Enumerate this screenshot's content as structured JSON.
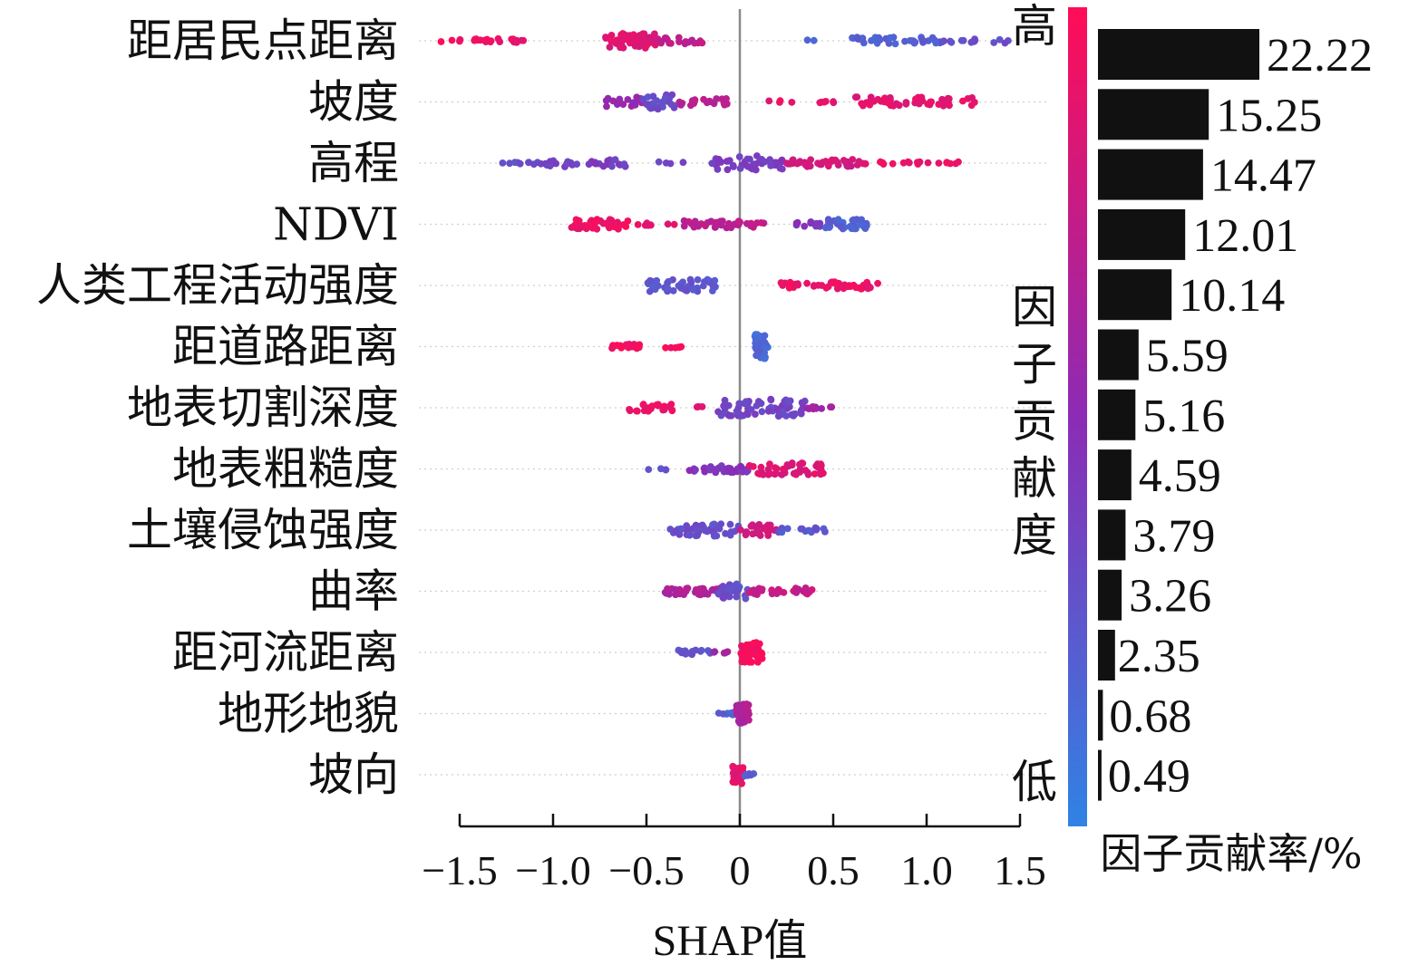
{
  "chart_data": [
    {
      "type": "scatter",
      "subtype": "shap-beeswarm",
      "xlabel": "SHAP值",
      "xlim": [
        -1.5,
        1.5
      ],
      "x_ticks": [
        -1.5,
        -1.0,
        -0.5,
        0,
        0.5,
        1.0,
        1.5
      ],
      "x_tick_labels": [
        "−1.5",
        "−1.0",
        "−0.5",
        "0",
        "0.5",
        "1.0",
        "1.5"
      ],
      "vertical_zero_line": true,
      "colors": {
        "high": "#ff0d57",
        "mid": "#8c2bb5",
        "low": "#2f83e4"
      },
      "features": [
        {
          "name": "距居民点距离",
          "clusters": [
            {
              "from": -1.62,
              "to": -1.5,
              "n": 3,
              "color": 0.97,
              "spread": 1
            },
            {
              "from": -1.5,
              "to": -1.15,
              "n": 22,
              "color": 0.92,
              "spread": 2
            },
            {
              "from": -0.72,
              "to": -0.45,
              "n": 55,
              "color": 0.85,
              "spread": 6
            },
            {
              "from": -0.45,
              "to": -0.2,
              "n": 18,
              "color": 0.72,
              "spread": 3
            },
            {
              "from": 0.35,
              "to": 0.4,
              "n": 2,
              "color": 0.15,
              "spread": 1
            },
            {
              "from": 0.6,
              "to": 1.08,
              "n": 38,
              "color": 0.2,
              "spread": 3
            },
            {
              "from": 1.08,
              "to": 1.45,
              "n": 14,
              "color": 0.3,
              "spread": 2
            }
          ]
        },
        {
          "name": "坡度",
          "clusters": [
            {
              "from": -0.72,
              "to": -0.52,
              "n": 18,
              "color": 0.55,
              "spread": 4
            },
            {
              "from": -0.52,
              "to": -0.35,
              "n": 30,
              "color": 0.3,
              "spread": 6
            },
            {
              "from": -0.35,
              "to": -0.05,
              "n": 20,
              "color": 0.68,
              "spread": 3
            },
            {
              "from": 0.12,
              "to": 0.55,
              "n": 10,
              "color": 0.9,
              "spread": 1
            },
            {
              "from": 0.62,
              "to": 1.3,
              "n": 45,
              "color": 0.88,
              "spread": 4
            }
          ]
        },
        {
          "name": "高程",
          "clusters": [
            {
              "from": -1.28,
              "to": -1.05,
              "n": 10,
              "color": 0.3,
              "spread": 1
            },
            {
              "from": -1.05,
              "to": -0.6,
              "n": 30,
              "color": 0.38,
              "spread": 3
            },
            {
              "from": -0.45,
              "to": -0.3,
              "n": 4,
              "color": 0.35,
              "spread": 1
            },
            {
              "from": -0.15,
              "to": 0.25,
              "n": 45,
              "color": 0.4,
              "spread": 6
            },
            {
              "from": 0.25,
              "to": 0.65,
              "n": 40,
              "color": 0.8,
              "spread": 3
            },
            {
              "from": 0.65,
              "to": 1.2,
              "n": 22,
              "color": 0.92,
              "spread": 1
            }
          ]
        },
        {
          "name": "NDVI",
          "clusters": [
            {
              "from": -0.92,
              "to": -0.6,
              "n": 42,
              "color": 0.92,
              "spread": 4
            },
            {
              "from": -0.55,
              "to": -0.35,
              "n": 8,
              "color": 0.88,
              "spread": 1
            },
            {
              "from": -0.3,
              "to": 0.15,
              "n": 40,
              "color": 0.7,
              "spread": 3
            },
            {
              "from": 0.28,
              "to": 0.45,
              "n": 10,
              "color": 0.45,
              "spread": 2
            },
            {
              "from": 0.45,
              "to": 0.68,
              "n": 35,
              "color": 0.2,
              "spread": 4
            }
          ]
        },
        {
          "name": "人类工程活动强度",
          "clusters": [
            {
              "from": -0.5,
              "to": -0.12,
              "n": 50,
              "color": 0.25,
              "spread": 5
            },
            {
              "from": 0.22,
              "to": 0.75,
              "n": 45,
              "color": 0.92,
              "spread": 3
            }
          ]
        },
        {
          "name": "距道路距离",
          "clusters": [
            {
              "from": -0.7,
              "to": -0.52,
              "n": 25,
              "color": 0.95,
              "spread": 2
            },
            {
              "from": -0.4,
              "to": -0.3,
              "n": 6,
              "color": 0.95,
              "spread": 1
            },
            {
              "from": 0.08,
              "to": 0.15,
              "n": 40,
              "color": 0.15,
              "spread": 10
            }
          ]
        },
        {
          "name": "地表切割深度",
          "clusters": [
            {
              "from": -0.6,
              "to": -0.35,
              "n": 25,
              "color": 0.93,
              "spread": 3
            },
            {
              "from": -0.3,
              "to": -0.2,
              "n": 3,
              "color": 0.9,
              "spread": 1
            },
            {
              "from": -0.12,
              "to": 0.35,
              "n": 70,
              "color": 0.35,
              "spread": 7
            },
            {
              "from": 0.35,
              "to": 0.5,
              "n": 10,
              "color": 0.6,
              "spread": 1
            }
          ]
        },
        {
          "name": "地表粗糙度",
          "clusters": [
            {
              "from": -0.5,
              "to": -0.38,
              "n": 4,
              "color": 0.25,
              "spread": 1
            },
            {
              "from": -0.28,
              "to": 0.05,
              "n": 40,
              "color": 0.45,
              "spread": 3
            },
            {
              "from": 0.05,
              "to": 0.45,
              "n": 45,
              "color": 0.85,
              "spread": 5
            }
          ]
        },
        {
          "name": "土壤侵蚀强度",
          "clusters": [
            {
              "from": -0.38,
              "to": 0.0,
              "n": 45,
              "color": 0.3,
              "spread": 5
            },
            {
              "from": 0.0,
              "to": 0.2,
              "n": 30,
              "color": 0.8,
              "spread": 5
            },
            {
              "from": 0.2,
              "to": 0.47,
              "n": 15,
              "color": 0.25,
              "spread": 2
            }
          ]
        },
        {
          "name": "曲率",
          "clusters": [
            {
              "from": -0.4,
              "to": -0.05,
              "n": 40,
              "color": 0.65,
              "spread": 3
            },
            {
              "from": -0.12,
              "to": 0.05,
              "n": 30,
              "color": 0.3,
              "spread": 6
            },
            {
              "from": 0.05,
              "to": 0.4,
              "n": 30,
              "color": 0.75,
              "spread": 3
            }
          ]
        },
        {
          "name": "距河流距离",
          "clusters": [
            {
              "from": -0.35,
              "to": -0.15,
              "n": 15,
              "color": 0.25,
              "spread": 2
            },
            {
              "from": -0.15,
              "to": -0.05,
              "n": 6,
              "color": 0.6,
              "spread": 1
            },
            {
              "from": 0.0,
              "to": 0.12,
              "n": 55,
              "color": 0.95,
              "spread": 8
            }
          ]
        },
        {
          "name": "地形地貌",
          "clusters": [
            {
              "from": -0.12,
              "to": -0.02,
              "n": 8,
              "color": 0.2,
              "spread": 1
            },
            {
              "from": -0.02,
              "to": 0.05,
              "n": 40,
              "color": 0.65,
              "spread": 8
            }
          ]
        },
        {
          "name": "坡向",
          "clusters": [
            {
              "from": -0.04,
              "to": 0.02,
              "n": 40,
              "color": 0.9,
              "spread": 8
            },
            {
              "from": 0.02,
              "to": 0.08,
              "n": 6,
              "color": 0.2,
              "spread": 1
            }
          ]
        }
      ]
    },
    {
      "type": "bar",
      "orientation": "horizontal",
      "title": "因子贡献率/%",
      "categories": [
        "距居民点距离",
        "坡度",
        "高程",
        "NDVI",
        "人类工程活动强度",
        "距道路距离",
        "地表切割深度",
        "地表粗糙度",
        "土壤侵蚀强度",
        "曲率",
        "距河流距离",
        "地形地貌",
        "坡向"
      ],
      "values": [
        22.22,
        15.25,
        14.47,
        12.01,
        10.14,
        5.59,
        5.16,
        4.59,
        3.79,
        3.26,
        2.35,
        0.68,
        0.49
      ],
      "value_labels": [
        "22.22",
        "15.25",
        "14.47",
        "12.01",
        "10.14",
        "5.59",
        "5.16",
        "4.59",
        "3.79",
        "3.26",
        "2.35",
        "0.68",
        "0.49"
      ],
      "bar_color": "#111111"
    }
  ],
  "colorbar": {
    "high_label": "高",
    "low_label": "低",
    "title_chars": [
      "因",
      "子",
      "贡",
      "献",
      "度"
    ],
    "colors": {
      "high": "#ff0d57",
      "mid": "#8c2bb5",
      "low": "#2f83e4"
    }
  }
}
